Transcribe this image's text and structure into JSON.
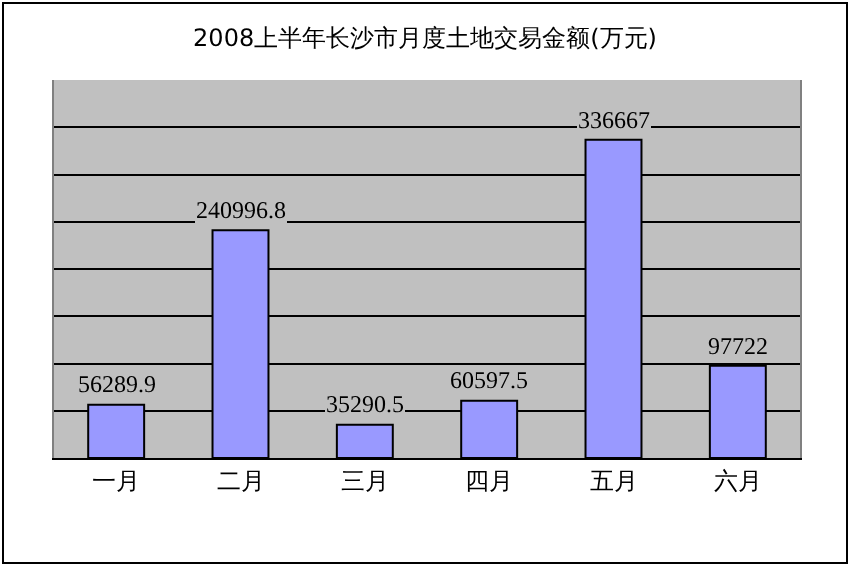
{
  "chart_data": {
    "type": "bar",
    "title": "2008上半年长沙市月度土地交易金额(万元)",
    "categories": [
      "一月",
      "二月",
      "三月",
      "四月",
      "五月",
      "六月"
    ],
    "values": [
      56289.9,
      240996.8,
      35290.5,
      60597.5,
      336667,
      97722
    ],
    "color": "#9999ff",
    "ylim": [
      0,
      400000
    ],
    "yticks": [
      {
        "value": 0,
        "label": null
      },
      {
        "value": 50000,
        "label": null
      },
      {
        "value": 100000,
        "label": null
      },
      {
        "value": 150000,
        "label": null
      },
      {
        "value": 200000,
        "label": null
      },
      {
        "value": 250000,
        "label": null
      },
      {
        "value": 300000,
        "label": null
      },
      {
        "value": 350000,
        "label": null
      },
      {
        "value": 400000,
        "label": null
      }
    ],
    "tick_labels": "x",
    "grid": "y",
    "data_labels": true
  }
}
